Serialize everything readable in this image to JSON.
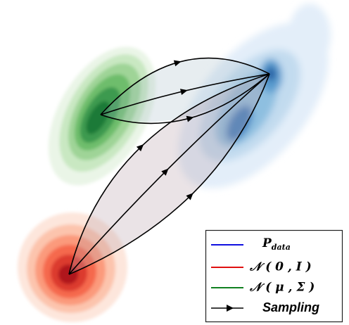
{
  "legend": {
    "items": [
      {
        "label": "P",
        "subscript": "data"
      },
      {
        "label": "𝒩 ( 0 , I )"
      },
      {
        "label": "𝒩 ( μ , Σ )"
      },
      {
        "label": "Sampling"
      }
    ]
  }
}
